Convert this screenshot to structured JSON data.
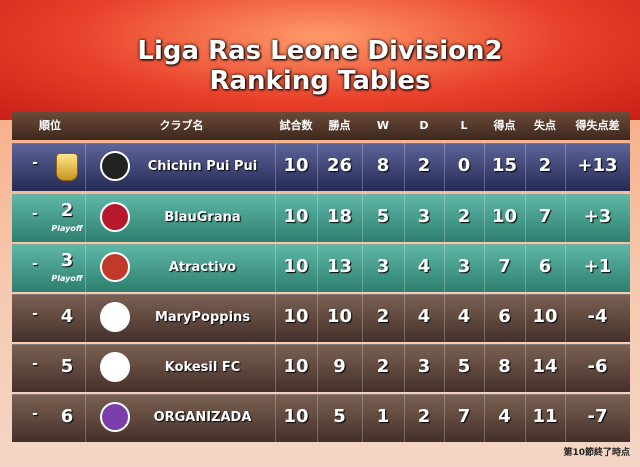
{
  "title": {
    "line1": "Liga Ras Leone Division2",
    "line2": "Ranking Tables"
  },
  "table": {
    "columns": [
      "順位",
      "クラブ名",
      "試合数",
      "勝点",
      "W",
      "D",
      "L",
      "得点",
      "失点",
      "得失点差"
    ],
    "rows": [
      {
        "movement": "-",
        "club": "Chichin Pui Pui",
        "stats": [
          "10",
          "26",
          "8",
          "2",
          "0",
          "15",
          "2",
          "+13"
        ]
      },
      {
        "movement": "-",
        "rank": "2",
        "note": "Playoff",
        "club": "BlauGrana",
        "stats": [
          "10",
          "18",
          "5",
          "3",
          "2",
          "10",
          "7",
          "+3"
        ]
      },
      {
        "movement": "-",
        "rank": "3",
        "note": "Playoff",
        "club": "Atractivo",
        "stats": [
          "10",
          "13",
          "3",
          "4",
          "3",
          "7",
          "6",
          "+1"
        ]
      },
      {
        "movement": "-",
        "rank": "4",
        "club": "MaryPoppins",
        "stats": [
          "10",
          "10",
          "2",
          "4",
          "4",
          "6",
          "10",
          "-4"
        ]
      },
      {
        "movement": "-",
        "rank": "5",
        "club": "Kokesil FC",
        "stats": [
          "10",
          "9",
          "2",
          "3",
          "5",
          "8",
          "14",
          "-6"
        ]
      },
      {
        "movement": "-",
        "rank": "6",
        "club": "ORGANIZADA",
        "stats": [
          "10",
          "5",
          "1",
          "2",
          "7",
          "4",
          "11",
          "-7"
        ]
      }
    ]
  },
  "footer": "第10節終了時点"
}
